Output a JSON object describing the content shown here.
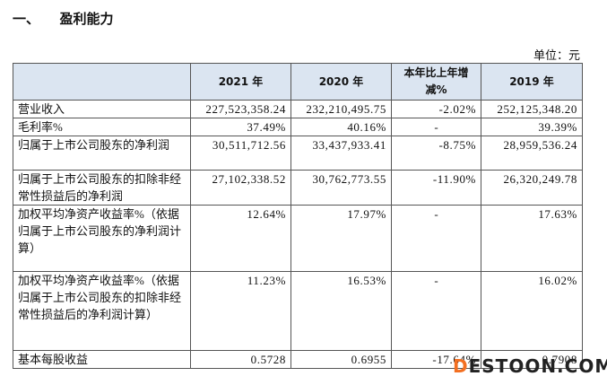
{
  "header": {
    "title": "一、　　盈利能力",
    "unit": "单位：元"
  },
  "table": {
    "columns": [
      "",
      "2021 年",
      "2020 年",
      "本年比上年增减%",
      "2019 年"
    ],
    "rows": [
      [
        "营业收入",
        "227,523,358.24",
        "232,210,495.75",
        "-2.02%",
        "252,125,348.20"
      ],
      [
        "毛利率%",
        "37.49%",
        "40.16%",
        "-",
        "39.39%"
      ],
      [
        "归属于上市公司股东的净利润",
        "30,511,712.56",
        "33,437,933.41",
        "-8.75%",
        "28,959,536.24"
      ],
      [
        "归属于上市公司股东的扣除非经常性损益后的净利润",
        "27,102,338.52",
        "30,762,773.55",
        "-11.90%",
        "26,320,249.78"
      ],
      [
        "加权平均净资产收益率%（依据归属于上市公司股东的净利润计算）",
        "12.64%",
        "17.97%",
        "-",
        "17.63%"
      ],
      [
        "加权平均净资产收益率%（依据归属于上市公司股东的扣除非经常性损益后的净利润计算）",
        "11.23%",
        "16.53%",
        "-",
        "16.02%"
      ],
      [
        "基本每股收益",
        "0.5728",
        "0.6955",
        "-17.64%",
        "0.7908"
      ]
    ]
  },
  "watermark": {
    "first": "D",
    "rest": "ESTOON.COM"
  }
}
